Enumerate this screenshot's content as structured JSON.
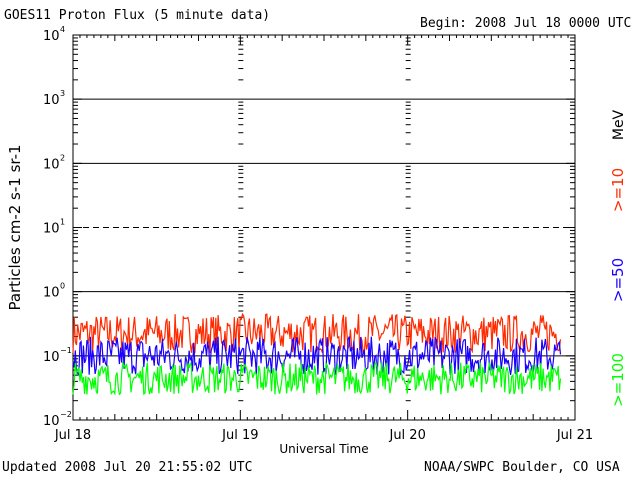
{
  "header": {
    "title": "GOES11 Proton Flux (5 minute data)",
    "begin": "Begin: 2008 Jul 18 0000 UTC"
  },
  "footer": {
    "updated": "Updated 2008 Jul 20 21:55:02 UTC",
    "source": "NOAA/SWPC Boulder, CO USA"
  },
  "chart_data": {
    "type": "line",
    "title": "GOES11 Proton Flux (5 minute data)",
    "xlabel": "Universal Time",
    "ylabel": "Particles cm-2 s-1 sr-1",
    "y_scale": "log",
    "ylim": [
      0.01,
      10000
    ],
    "y_ticks": [
      "10^-2",
      "10^-1",
      "10^0",
      "10^1",
      "10^2",
      "10^3",
      "10^4"
    ],
    "x_ticks": [
      "Jul 18",
      "Jul 19",
      "Jul 20",
      "Jul 21"
    ],
    "xlim": [
      "2008-07-18",
      "2008-07-21"
    ],
    "data_end": "2008-07-20 21:55",
    "legend_unit": "MeV",
    "legend_placement": "right",
    "series": [
      {
        "name": ">=10",
        "color": "#ff2a00",
        "range": [
          0.11,
          0.45
        ]
      },
      {
        "name": ">=50",
        "color": "#1a00ff",
        "range": [
          0.05,
          0.2
        ]
      },
      {
        "name": ">=100",
        "color": "#00ff00",
        "range": [
          0.025,
          0.08
        ]
      }
    ]
  }
}
